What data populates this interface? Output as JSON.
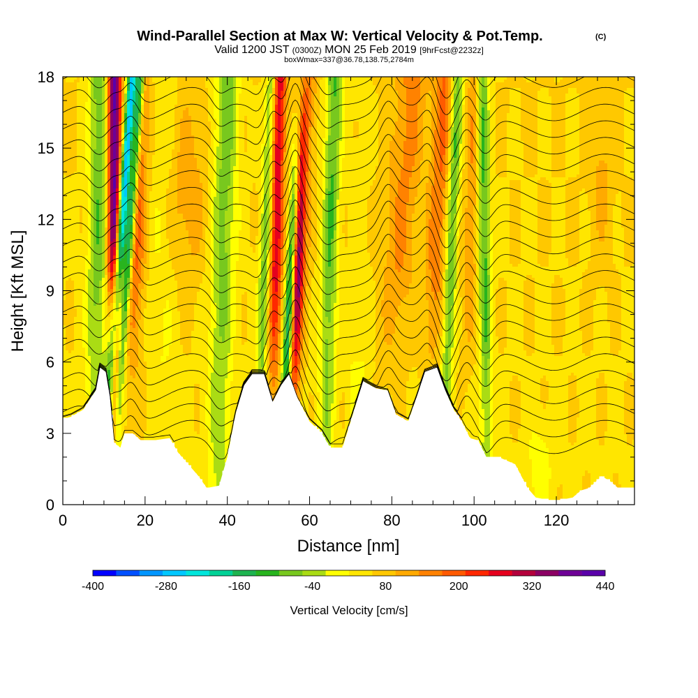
{
  "chart_data": {
    "type": "heatmap",
    "title": "Wind-Parallel Section at Max W: Vertical Velocity & Pot.Temp.",
    "title_mark": "(C)",
    "subtitle_parts": [
      "Valid 1200 JST",
      "(0300Z)",
      "MON 25 Feb 2019",
      "[9hrFcst@2232z]"
    ],
    "subtitle2": "boxWmax=337@36.78,138.75,2784m",
    "xlabel": "Distance [nm]",
    "ylabel": "Height [Kft MSL]",
    "xlim": [
      0,
      139
    ],
    "ylim": [
      0,
      18
    ],
    "x_ticks": [
      0,
      20,
      40,
      60,
      80,
      100,
      120
    ],
    "y_ticks": [
      0,
      3,
      6,
      9,
      12,
      15,
      18
    ],
    "colorbar": {
      "label": "Vertical Velocity [cm/s]",
      "tick_labels": [
        "-400",
        "-280",
        "-160",
        "-40",
        "80",
        "200",
        "320",
        "440"
      ],
      "tick_values": [
        -400,
        -280,
        -160,
        -40,
        80,
        200,
        320,
        440
      ],
      "colors": [
        "#0000ff",
        "#0050ff",
        "#0096ff",
        "#00c8ff",
        "#00e6dc",
        "#00d296",
        "#1eb450",
        "#28b41e",
        "#78c81e",
        "#aadc14",
        "#ffff00",
        "#ffe600",
        "#ffc800",
        "#ffaa00",
        "#ff8200",
        "#ff5a00",
        "#ff2800",
        "#e6001e",
        "#b4003c",
        "#8c0064",
        "#6e0096",
        "#5a00aa"
      ]
    },
    "terrain_kft": [
      [
        0,
        3.6
      ],
      [
        2,
        3.7
      ],
      [
        5,
        4.0
      ],
      [
        8,
        4.8
      ],
      [
        9,
        5.8
      ],
      [
        10.5,
        5.6
      ],
      [
        11.5,
        4.5
      ],
      [
        12.5,
        2.6
      ],
      [
        14,
        2.4
      ],
      [
        15,
        3.0
      ],
      [
        17,
        3.0
      ],
      [
        19,
        2.7
      ],
      [
        22,
        2.7
      ],
      [
        26,
        2.8
      ],
      [
        28,
        2.2
      ],
      [
        30,
        1.8
      ],
      [
        33,
        1.2
      ],
      [
        35,
        0.7
      ],
      [
        38,
        0.8
      ],
      [
        40,
        2.0
      ],
      [
        42,
        3.8
      ],
      [
        44,
        5.0
      ],
      [
        46,
        5.5
      ],
      [
        49,
        5.5
      ],
      [
        51,
        4.3
      ],
      [
        53,
        5.0
      ],
      [
        55,
        5.5
      ],
      [
        57,
        4.5
      ],
      [
        60,
        3.5
      ],
      [
        63,
        3.0
      ],
      [
        65,
        2.4
      ],
      [
        68,
        2.4
      ],
      [
        70,
        3.5
      ],
      [
        73,
        5.2
      ],
      [
        76,
        4.9
      ],
      [
        79,
        4.8
      ],
      [
        81,
        3.8
      ],
      [
        84,
        3.5
      ],
      [
        86,
        4.5
      ],
      [
        88,
        5.6
      ],
      [
        91,
        5.8
      ],
      [
        93,
        4.8
      ],
      [
        95,
        4.0
      ],
      [
        97,
        3.5
      ],
      [
        99,
        2.8
      ],
      [
        101,
        2.7
      ],
      [
        103,
        2.0
      ],
      [
        106,
        2.0
      ],
      [
        110,
        1.7
      ],
      [
        113,
        0.7
      ],
      [
        115,
        0.3
      ],
      [
        118,
        0.2
      ],
      [
        121,
        0.2
      ],
      [
        124,
        0.3
      ],
      [
        126,
        0.6
      ],
      [
        128,
        0.7
      ],
      [
        131,
        1.2
      ],
      [
        133,
        1.0
      ],
      [
        135,
        0.7
      ],
      [
        139,
        0.7
      ]
    ],
    "updraft_bands": [
      {
        "x_bottom": 12.5,
        "x_top": 12.5,
        "w_max": 440,
        "width": 1.6
      },
      {
        "x_bottom": 16.5,
        "x_top": 19,
        "w_max": 200,
        "width": 2.5
      },
      {
        "x_bottom": 51,
        "x_top": 52.5,
        "w_max": 320,
        "width": 1.8
      },
      {
        "x_bottom": 56,
        "x_top": 58,
        "w_max": 440,
        "width": 1.4
      },
      {
        "x_bottom": 56.5,
        "x_top": 60,
        "w_max": 140,
        "width": 2.0
      },
      {
        "x_bottom": 79,
        "x_top": 85,
        "w_max": 150,
        "width": 4.0
      },
      {
        "x_bottom": 89,
        "x_top": 93,
        "w_max": 180,
        "width": 2.5
      },
      {
        "x_bottom": 98,
        "x_top": 100.5,
        "w_max": 140,
        "width": 2.0
      }
    ],
    "downdraft_bands": [
      {
        "x_bottom": 11,
        "x_top": 17,
        "w_min": -340,
        "width": 1.3
      },
      {
        "x_bottom": 13.5,
        "x_top": 19,
        "w_min": -220,
        "width": 1.0
      },
      {
        "x_bottom": 54,
        "x_top": 58,
        "w_min": -300,
        "width": 1.3
      },
      {
        "x_bottom": 48,
        "x_top": 51,
        "w_min": -120,
        "width": 1.5
      },
      {
        "x_bottom": 64,
        "x_top": 66,
        "w_min": -100,
        "width": 2.0
      },
      {
        "x_bottom": 93,
        "x_top": 96,
        "w_min": -110,
        "width": 1.5
      },
      {
        "x_bottom": 103,
        "x_top": 102,
        "w_min": -120,
        "width": 1.5
      },
      {
        "x_bottom": 8,
        "x_top": 9,
        "w_min": -90,
        "width": 2.5
      },
      {
        "x_bottom": 38,
        "x_top": 40,
        "w_min": -80,
        "width": 3.0
      }
    ]
  }
}
